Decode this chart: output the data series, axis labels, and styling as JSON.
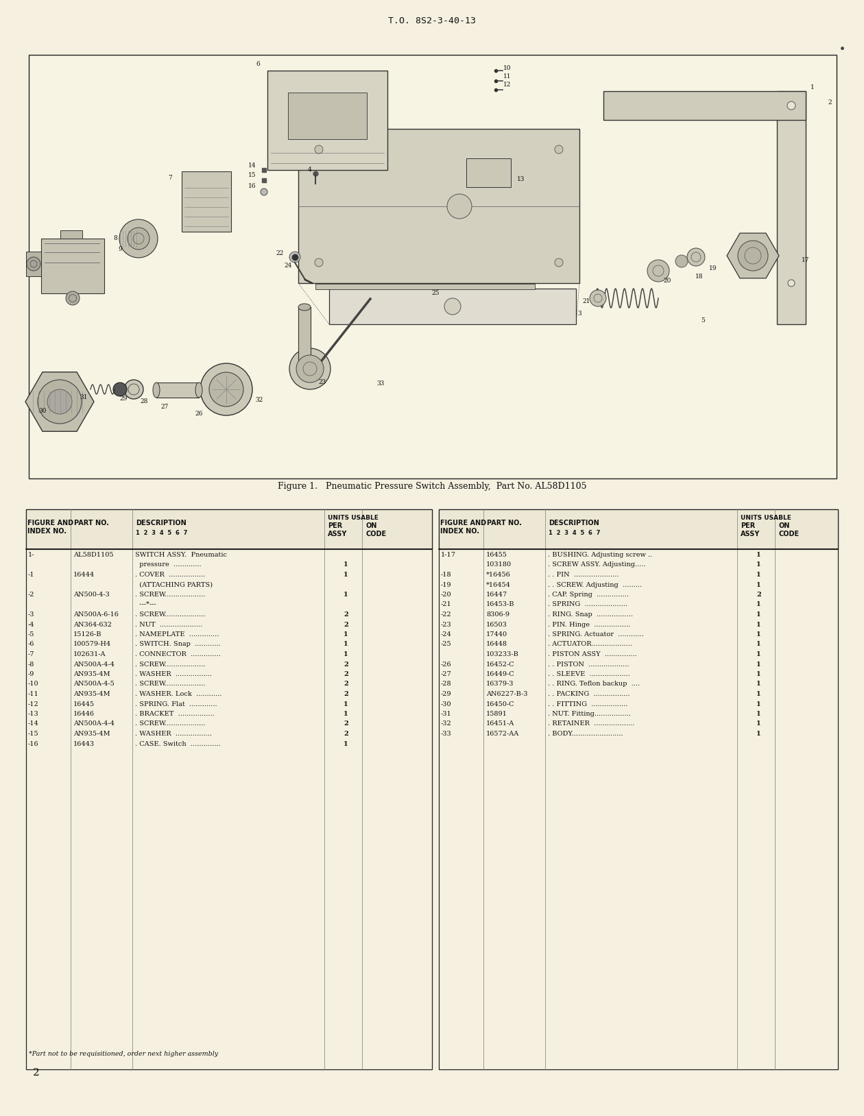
{
  "page_bg": "#f5f0e0",
  "header_text": "T.O. 8S2-3-40-13",
  "footer_page_num": "2",
  "figure_caption": "Figure 1.   Pneumatic Pressure Switch Assembly,  Part No. AL58D1105",
  "text_color": "#1a1a1a",
  "left_rows": [
    [
      "1-",
      "AL58D1105",
      "SWITCH ASSY.  Pneumatic",
      ""
    ],
    [
      "",
      "",
      "  pressure  .............",
      "1"
    ],
    [
      "-1",
      "16444",
      ". COVER  .................",
      "1"
    ],
    [
      "",
      "",
      "  (ATTACHING PARTS)",
      ""
    ],
    [
      "-2",
      "AN500-4-3",
      ". SCREW...................",
      "1"
    ],
    [
      "",
      "",
      "  ---*---",
      ""
    ],
    [
      "-3",
      "AN500A-6-16",
      ". SCREW...................",
      "2"
    ],
    [
      "-4",
      "AN364-632",
      ". NUT  ....................",
      "2"
    ],
    [
      "-5",
      "15126-B",
      ". NAMEPLATE  ..............",
      "1"
    ],
    [
      "-6",
      "100579-H4",
      ". SWITCH. Snap  ............",
      "1"
    ],
    [
      "-7",
      "102631-A",
      ". CONNECTOR  ..............",
      "1"
    ],
    [
      "-8",
      "AN500A-4-4",
      ". SCREW...................",
      "2"
    ],
    [
      "-9",
      "AN935-4M",
      ". WASHER  .................",
      "2"
    ],
    [
      "-10",
      "AN500A-4-5",
      ". SCREW...................",
      "2"
    ],
    [
      "-11",
      "AN935-4M",
      ". WASHER. Lock  ............",
      "2"
    ],
    [
      "-12",
      "16445",
      ". SPRING. Flat  .............",
      "1"
    ],
    [
      "-13",
      "16446",
      ". BRACKET  .................",
      "1"
    ],
    [
      "-14",
      "AN500A-4-4",
      ". SCREW...................",
      "2"
    ],
    [
      "-15",
      "AN935-4M",
      ". WASHER  .................",
      "2"
    ],
    [
      "-16",
      "16443",
      ". CASE. Switch  ..............",
      "1"
    ]
  ],
  "right_rows": [
    [
      "1-17",
      "16455",
      ". BUSHING. Adjusting screw ..",
      "1"
    ],
    [
      "",
      "103180",
      ". SCREW ASSY. Adjusting.....",
      "1"
    ],
    [
      "-18",
      "*16456",
      ". . PIN  .....................",
      "1"
    ],
    [
      "-19",
      "*16454",
      ". . SCREW. Adjusting  .........",
      "1"
    ],
    [
      "-20",
      "16447",
      ". CAP. Spring  ...............",
      "2"
    ],
    [
      "-21",
      "16453-B",
      ". SPRING  ....................",
      "1"
    ],
    [
      "-22",
      "8306-9",
      ". RING. Snap  .................",
      "1"
    ],
    [
      "-23",
      "16503",
      ". PIN. Hinge  .................",
      "1"
    ],
    [
      "-24",
      "17440",
      ". SPRING. Actuator  ............",
      "1"
    ],
    [
      "-25",
      "16448",
      ". ACTUATOR...................",
      "1"
    ],
    [
      "",
      "103233-B",
      ". PISTON ASSY  ...............",
      "1"
    ],
    [
      "-26",
      "16452-C",
      ". . PISTON  ...................",
      "1"
    ],
    [
      "-27",
      "16449-C",
      ". . SLEEVE  ...................",
      "1"
    ],
    [
      "-28",
      "16379-3",
      ". . RING. Teflon backup  ....",
      "1"
    ],
    [
      "-29",
      "AN6227-B-3",
      ". . PACKING  .................",
      "1"
    ],
    [
      "-30",
      "16450-C",
      ". . FITTING  .................",
      "1"
    ],
    [
      "-31",
      "15891",
      ". NUT. Fitting.................",
      "1"
    ],
    [
      "-32",
      "16451-A",
      ". RETAINER  ...................",
      "1"
    ],
    [
      "-33",
      "16572-AA",
      ". BODY........................",
      "1"
    ]
  ],
  "footnote": "*Part not to be requisitioned, order next higher assembly"
}
